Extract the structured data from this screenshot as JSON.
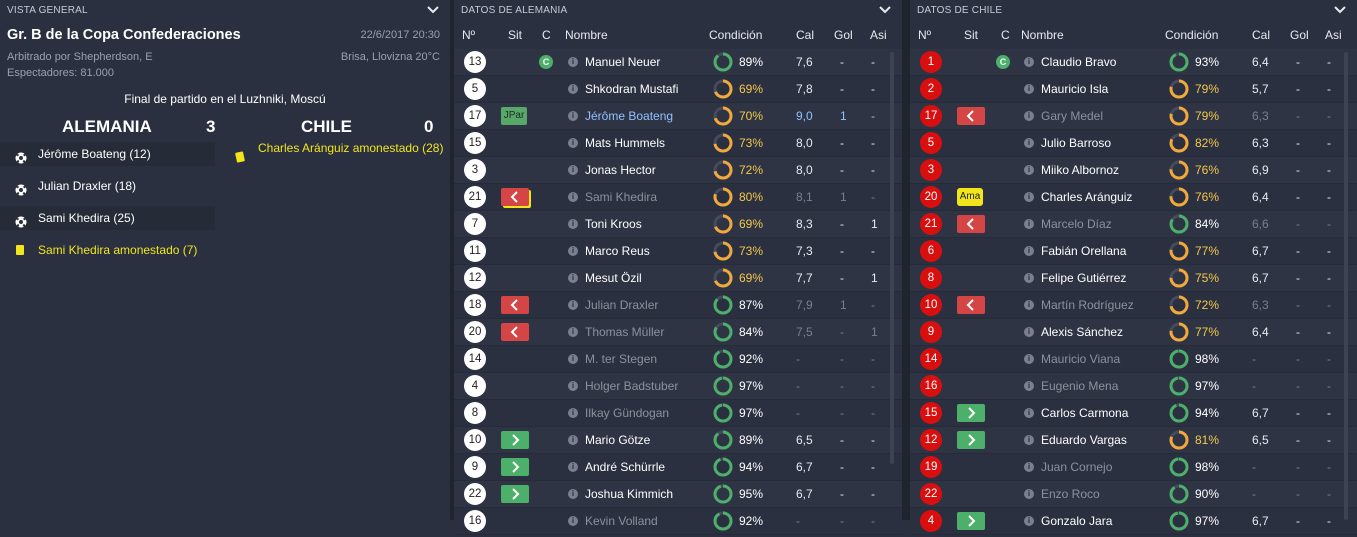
{
  "overview": {
    "header": "VISTA GENERAL",
    "title": "Gr. B de la Copa Confederaciones",
    "date": "22/6/2017 20:30",
    "referee": "Arbitrado por Shepherdson, E",
    "weather": "Brisa, Llovizna 20°C",
    "attendance": "Espectadores: 81.000",
    "venue": "Final de partido en el Luzhniki, Moscú",
    "home_team": "ALEMANIA",
    "home_score": "3",
    "away_team": "CHILE",
    "away_score": "0",
    "home_events": [
      {
        "text": "Jérôme Boateng (12)",
        "type": "goal"
      },
      {
        "text": "Julian Draxler (18)",
        "type": "goal"
      },
      {
        "text": "Sami Khedira (25)",
        "type": "goal"
      },
      {
        "text": "Sami Khedira amonestado (7)",
        "type": "yellow"
      }
    ],
    "away_event": "Charles Aránguiz amonestado (28)"
  },
  "columns": {
    "num": "Nº",
    "sit": "Sit",
    "cap": "C",
    "name": "Nombre",
    "cond": "Condición",
    "cal": "Cal",
    "gol": "Gol",
    "asi": "Asi"
  },
  "germany": {
    "header": "DATOS DE ALEMANIA",
    "players": [
      {
        "num": "13",
        "sit": "",
        "cap": "C",
        "name": "Manuel Neuer",
        "cond": "89%",
        "cond_value": 89,
        "cal": "7,6",
        "gol": "-",
        "asi": "-",
        "state": ""
      },
      {
        "num": "5",
        "sit": "",
        "cap": "",
        "name": "Shkodran Mustafi",
        "cond": "69%",
        "cond_value": 69,
        "cal": "7,8",
        "gol": "-",
        "asi": "-",
        "state": ""
      },
      {
        "num": "17",
        "sit": "JPar",
        "cap": "",
        "name": "Jérôme Boateng",
        "cond": "70%",
        "cond_value": 70,
        "cal": "9,0",
        "gol": "1",
        "asi": "-",
        "state": "hl"
      },
      {
        "num": "15",
        "sit": "",
        "cap": "",
        "name": "Mats Hummels",
        "cond": "73%",
        "cond_value": 73,
        "cal": "8,0",
        "gol": "-",
        "asi": "-",
        "state": ""
      },
      {
        "num": "3",
        "sit": "",
        "cap": "",
        "name": "Jonas Hector",
        "cond": "72%",
        "cond_value": 72,
        "cal": "8,0",
        "gol": "-",
        "asi": "-",
        "state": ""
      },
      {
        "num": "21",
        "sit": "out",
        "cap": "",
        "name": "Sami Khedira",
        "cond": "80%",
        "cond_value": 80,
        "cal": "8,1",
        "gol": "1",
        "asi": "-",
        "state": "dim"
      },
      {
        "num": "7",
        "sit": "",
        "cap": "",
        "name": "Toni Kroos",
        "cond": "69%",
        "cond_value": 69,
        "cal": "8,3",
        "gol": "-",
        "asi": "1",
        "state": ""
      },
      {
        "num": "11",
        "sit": "",
        "cap": "",
        "name": "Marco Reus",
        "cond": "73%",
        "cond_value": 73,
        "cal": "7,3",
        "gol": "-",
        "asi": "-",
        "state": ""
      },
      {
        "num": "12",
        "sit": "",
        "cap": "",
        "name": "Mesut Özil",
        "cond": "69%",
        "cond_value": 69,
        "cal": "7,7",
        "gol": "-",
        "asi": "1",
        "state": ""
      },
      {
        "num": "18",
        "sit": "out",
        "cap": "",
        "name": "Julian Draxler",
        "cond": "87%",
        "cond_value": 87,
        "cal": "7,9",
        "gol": "1",
        "asi": "-",
        "state": "dim"
      },
      {
        "num": "20",
        "sit": "out",
        "cap": "",
        "name": "Thomas Müller",
        "cond": "84%",
        "cond_value": 84,
        "cal": "7,5",
        "gol": "-",
        "asi": "1",
        "state": "dim"
      },
      {
        "num": "14",
        "sit": "",
        "cap": "",
        "name": "M. ter Stegen",
        "cond": "92%",
        "cond_value": 92,
        "cal": "-",
        "gol": "-",
        "asi": "-",
        "state": "dim"
      },
      {
        "num": "4",
        "sit": "",
        "cap": "",
        "name": "Holger Badstuber",
        "cond": "97%",
        "cond_value": 97,
        "cal": "-",
        "gol": "-",
        "asi": "-",
        "state": "dim"
      },
      {
        "num": "8",
        "sit": "",
        "cap": "",
        "name": "Ilkay Gündogan",
        "cond": "97%",
        "cond_value": 97,
        "cal": "-",
        "gol": "-",
        "asi": "-",
        "state": "dim"
      },
      {
        "num": "10",
        "sit": "in",
        "cap": "",
        "name": "Mario Götze",
        "cond": "89%",
        "cond_value": 89,
        "cal": "6,5",
        "gol": "-",
        "asi": "-",
        "state": ""
      },
      {
        "num": "9",
        "sit": "in",
        "cap": "",
        "name": "André Schürrle",
        "cond": "94%",
        "cond_value": 94,
        "cal": "6,7",
        "gol": "-",
        "asi": "-",
        "state": ""
      },
      {
        "num": "22",
        "sit": "in",
        "cap": "",
        "name": "Joshua Kimmich",
        "cond": "95%",
        "cond_value": 95,
        "cal": "6,7",
        "gol": "-",
        "asi": "-",
        "state": ""
      },
      {
        "num": "16",
        "sit": "",
        "cap": "",
        "name": "Kevin Volland",
        "cond": "92%",
        "cond_value": 92,
        "cal": "-",
        "gol": "-",
        "asi": "-",
        "state": "dim"
      }
    ]
  },
  "chile": {
    "header": "DATOS DE CHILE",
    "players": [
      {
        "num": "1",
        "sit": "",
        "cap": "C",
        "name": "Claudio Bravo",
        "cond": "93%",
        "cond_value": 93,
        "cal": "6,4",
        "gol": "-",
        "asi": "-",
        "state": ""
      },
      {
        "num": "2",
        "sit": "",
        "cap": "",
        "name": "Mauricio Isla",
        "cond": "79%",
        "cond_value": 79,
        "cal": "5,7",
        "gol": "-",
        "asi": "-",
        "state": ""
      },
      {
        "num": "17",
        "sit": "out",
        "cap": "",
        "name": "Gary Medel",
        "cond": "79%",
        "cond_value": 79,
        "cal": "6,3",
        "gol": "-",
        "asi": "-",
        "state": "dim"
      },
      {
        "num": "5",
        "sit": "",
        "cap": "",
        "name": "Julio Barroso",
        "cond": "82%",
        "cond_value": 82,
        "cal": "6,3",
        "gol": "-",
        "asi": "-",
        "state": ""
      },
      {
        "num": "3",
        "sit": "",
        "cap": "",
        "name": "Miiko Albornoz",
        "cond": "76%",
        "cond_value": 76,
        "cal": "6,9",
        "gol": "-",
        "asi": "-",
        "state": ""
      },
      {
        "num": "20",
        "sit": "Ama",
        "cap": "",
        "name": "Charles Aránguiz",
        "cond": "76%",
        "cond_value": 76,
        "cal": "6,4",
        "gol": "-",
        "asi": "-",
        "state": ""
      },
      {
        "num": "21",
        "sit": "out",
        "cap": "",
        "name": "Marcelo Díaz",
        "cond": "84%",
        "cond_value": 84,
        "cal": "6,6",
        "gol": "-",
        "asi": "-",
        "state": "dim"
      },
      {
        "num": "6",
        "sit": "",
        "cap": "",
        "name": "Fabián Orellana",
        "cond": "77%",
        "cond_value": 77,
        "cal": "6,7",
        "gol": "-",
        "asi": "-",
        "state": ""
      },
      {
        "num": "8",
        "sit": "",
        "cap": "",
        "name": "Felipe Gutiérrez",
        "cond": "75%",
        "cond_value": 75,
        "cal": "6,7",
        "gol": "-",
        "asi": "-",
        "state": ""
      },
      {
        "num": "10",
        "sit": "out",
        "cap": "",
        "name": "Martín Rodríguez",
        "cond": "72%",
        "cond_value": 72,
        "cal": "6,3",
        "gol": "-",
        "asi": "-",
        "state": "dim"
      },
      {
        "num": "9",
        "sit": "",
        "cap": "",
        "name": "Alexis Sánchez",
        "cond": "77%",
        "cond_value": 77,
        "cal": "6,4",
        "gol": "-",
        "asi": "-",
        "state": ""
      },
      {
        "num": "14",
        "sit": "",
        "cap": "",
        "name": "Mauricio Viana",
        "cond": "98%",
        "cond_value": 98,
        "cal": "-",
        "gol": "-",
        "asi": "-",
        "state": "dim"
      },
      {
        "num": "16",
        "sit": "",
        "cap": "",
        "name": "Eugenio Mena",
        "cond": "97%",
        "cond_value": 97,
        "cal": "-",
        "gol": "-",
        "asi": "-",
        "state": "dim"
      },
      {
        "num": "15",
        "sit": "in",
        "cap": "",
        "name": "Carlos Carmona",
        "cond": "94%",
        "cond_value": 94,
        "cal": "6,7",
        "gol": "-",
        "asi": "-",
        "state": ""
      },
      {
        "num": "12",
        "sit": "in",
        "cap": "",
        "name": "Eduardo Vargas",
        "cond": "81%",
        "cond_value": 81,
        "cal": "6,5",
        "gol": "-",
        "asi": "-",
        "state": ""
      },
      {
        "num": "19",
        "sit": "",
        "cap": "",
        "name": "Juan Cornejo",
        "cond": "98%",
        "cond_value": 98,
        "cal": "-",
        "gol": "-",
        "asi": "-",
        "state": "dim"
      },
      {
        "num": "22",
        "sit": "",
        "cap": "",
        "name": "Enzo Roco",
        "cond": "90%",
        "cond_value": 90,
        "cal": "-",
        "gol": "-",
        "asi": "-",
        "state": "dim"
      },
      {
        "num": "4",
        "sit": "in",
        "cap": "",
        "name": "Gonzalo Jara",
        "cond": "97%",
        "cond_value": 97,
        "cal": "6,7",
        "gol": "-",
        "asi": "-",
        "state": ""
      }
    ]
  },
  "colors": {
    "background": "#2b3040",
    "condition_good": "#4caf6a",
    "condition_tired": "#f2a93b",
    "yellow_card": "#f2e51c",
    "chile_number": "#d90f0f"
  }
}
